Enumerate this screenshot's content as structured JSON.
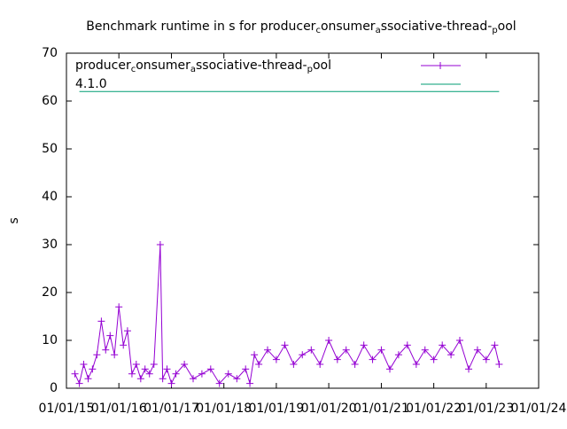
{
  "chart_data": {
    "type": "line",
    "title": "Benchmark runtime in s for producer_consumer_associative-thread-_pool",
    "ylabel": "s",
    "xlim": [
      "2015-01-01",
      "2024-01-01"
    ],
    "xticks": [
      {
        "value": "2015-01-01",
        "label": "01/01/15"
      },
      {
        "value": "2016-01-01",
        "label": "01/01/16"
      },
      {
        "value": "2017-01-01",
        "label": "01/01/17"
      },
      {
        "value": "2018-01-01",
        "label": "01/01/18"
      },
      {
        "value": "2019-01-01",
        "label": "01/01/19"
      },
      {
        "value": "2020-01-01",
        "label": "01/01/20"
      },
      {
        "value": "2021-01-01",
        "label": "01/01/21"
      },
      {
        "value": "2022-01-01",
        "label": "01/01/22"
      },
      {
        "value": "2023-01-01",
        "label": "01/01/23"
      },
      {
        "value": "2024-01-01",
        "label": "01/01/24"
      }
    ],
    "ylim": [
      0,
      70
    ],
    "yticks": [
      0,
      10,
      20,
      30,
      40,
      50,
      60,
      70
    ],
    "legend": "top-left",
    "series": [
      {
        "name": "producer_consumer_associative-thread-_pool",
        "color": "#9400d3",
        "marker": "plus",
        "x": [
          "2015-03-01",
          "2015-04-01",
          "2015-05-01",
          "2015-06-01",
          "2015-07-01",
          "2015-08-01",
          "2015-09-01",
          "2015-10-01",
          "2015-11-01",
          "2015-12-01",
          "2016-01-01",
          "2016-02-01",
          "2016-03-01",
          "2016-04-01",
          "2016-05-01",
          "2016-06-01",
          "2016-07-01",
          "2016-08-01",
          "2016-09-01",
          "2016-10-15",
          "2016-11-01",
          "2016-12-01",
          "2017-01-01",
          "2017-02-01",
          "2017-04-01",
          "2017-06-01",
          "2017-08-01",
          "2017-10-01",
          "2017-12-01",
          "2018-02-01",
          "2018-04-01",
          "2018-06-01",
          "2018-07-01",
          "2018-08-01",
          "2018-09-01",
          "2018-11-01",
          "2019-01-01",
          "2019-03-01",
          "2019-05-01",
          "2019-07-01",
          "2019-09-01",
          "2019-11-01",
          "2020-01-01",
          "2020-03-01",
          "2020-05-01",
          "2020-07-01",
          "2020-09-01",
          "2020-11-01",
          "2021-01-01",
          "2021-03-01",
          "2021-05-01",
          "2021-07-01",
          "2021-09-01",
          "2021-11-01",
          "2022-01-01",
          "2022-03-01",
          "2022-05-01",
          "2022-07-01",
          "2022-09-01",
          "2022-11-01",
          "2023-01-01",
          "2023-03-01",
          "2023-04-01"
        ],
        "values": [
          3,
          1,
          5,
          2,
          4,
          7,
          14,
          8,
          11,
          7,
          17,
          9,
          12,
          3,
          5,
          2,
          4,
          3,
          5,
          30,
          2,
          4,
          1,
          3,
          5,
          2,
          3,
          4,
          1,
          3,
          2,
          4,
          1,
          7,
          5,
          8,
          6,
          9,
          5,
          7,
          8,
          5,
          10,
          6,
          8,
          5,
          9,
          6,
          8,
          4,
          7,
          9,
          5,
          8,
          6,
          9,
          7,
          10,
          4,
          8,
          6,
          9,
          5
        ]
      },
      {
        "name": "4.1.0",
        "color": "#009e73",
        "x": [
          "2015-04-01",
          "2023-04-01"
        ],
        "values": [
          62,
          62
        ]
      }
    ]
  }
}
